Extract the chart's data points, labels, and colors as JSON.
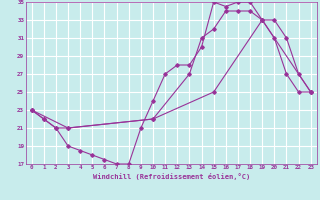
{
  "xlabel": "Windchill (Refroidissement éolien,°C)",
  "bg_color": "#c8ecec",
  "grid_color": "#ffffff",
  "line_color": "#993399",
  "xlim": [
    -0.5,
    23.5
  ],
  "ylim": [
    17,
    35
  ],
  "xticks": [
    0,
    1,
    2,
    3,
    4,
    5,
    6,
    7,
    8,
    9,
    10,
    11,
    12,
    13,
    14,
    15,
    16,
    17,
    18,
    19,
    20,
    21,
    22,
    23
  ],
  "yticks": [
    17,
    19,
    21,
    23,
    25,
    27,
    29,
    31,
    33,
    35
  ],
  "line1": {
    "x": [
      0,
      1,
      2,
      3,
      4,
      5,
      6,
      7,
      8,
      9,
      10,
      11,
      12,
      13,
      14,
      15,
      16,
      17,
      18,
      19,
      20,
      21,
      22,
      23
    ],
    "y": [
      23,
      22,
      21,
      19,
      18.5,
      18,
      17.5,
      17,
      17,
      21,
      24,
      27,
      28,
      28,
      30,
      35,
      34.5,
      35,
      35,
      33,
      31,
      27,
      25,
      25
    ]
  },
  "line2": {
    "x": [
      0,
      1,
      2,
      3,
      10,
      13,
      14,
      15,
      16,
      17,
      18,
      19,
      20,
      21,
      22,
      23
    ],
    "y": [
      23,
      22,
      21,
      21,
      22,
      27,
      31,
      32,
      34,
      34,
      34,
      33,
      33,
      31,
      27,
      25
    ]
  },
  "line3": {
    "x": [
      0,
      3,
      10,
      15,
      19,
      23
    ],
    "y": [
      23,
      21,
      22,
      25,
      33,
      25
    ]
  }
}
